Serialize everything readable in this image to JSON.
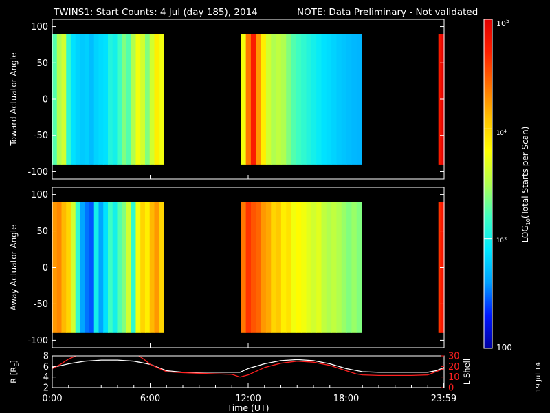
{
  "header": {
    "title": "TWINS1: Start Counts:  4 Jul (day 185), 2014",
    "note": "NOTE: Data Preliminary - Not validated",
    "note_color": "#ff2020"
  },
  "side_stamp": "19 Jul 14",
  "chart_data": [
    {
      "type": "heatmap",
      "panel": "toward",
      "ylabel": "Toward Actuator Angle",
      "ylim": [
        -110,
        110
      ],
      "yticks": [
        "100",
        "50",
        "0",
        "-50",
        "-100"
      ],
      "ytick_values": [
        100,
        50,
        0,
        -50,
        -100
      ],
      "data_y_range": [
        -90,
        90
      ],
      "xlim_hours": [
        0,
        24
      ],
      "segments": [
        {
          "start_hour": 0.0,
          "end_hour": 6.82,
          "profile": [
            10.0,
            12.0,
            13.0,
            9.0,
            7.0,
            6.5,
            6.2,
            6.4,
            5.8,
            6.5,
            6.8,
            7.0,
            8.5,
            8.0,
            9.5,
            11.0,
            10.0,
            12.0,
            14.0,
            13.0,
            11.0,
            13.0,
            15.0,
            14.0
          ]
        },
        {
          "start_hour": 11.55,
          "end_hour": 18.95,
          "profile": [
            14.0,
            19.0,
            22.0,
            18.0,
            15.0,
            13.0,
            12.0,
            12.5,
            12.0,
            11.0,
            10.0,
            9.5,
            9.0,
            8.5,
            8.0,
            7.5,
            7.0,
            6.8,
            6.5,
            6.2,
            6.0,
            5.8,
            5.6,
            5.5
          ]
        },
        {
          "start_hour": 23.65,
          "end_hour": 24.0,
          "profile": [
            22.0,
            23.0,
            24.0
          ]
        }
      ]
    },
    {
      "type": "heatmap",
      "panel": "away",
      "ylabel": "Away Actuator Angle",
      "ylim": [
        -110,
        110
      ],
      "yticks": [
        "100",
        "50",
        "0",
        "-50",
        "-100"
      ],
      "ytick_values": [
        100,
        50,
        0,
        -50,
        -100
      ],
      "data_y_range": [
        -90,
        90
      ],
      "xlim_hours": [
        0,
        24
      ],
      "segments": [
        {
          "start_hour": 0.0,
          "end_hour": 6.82,
          "profile": [
            18.0,
            18.5,
            17.0,
            16.0,
            13.0,
            9.0,
            5.0,
            4.0,
            3.5,
            8.0,
            5.0,
            7.0,
            9.5,
            8.0,
            10.0,
            11.0,
            13.0,
            9.0,
            14.0,
            16.0,
            15.0,
            17.0,
            18.0,
            16.0
          ]
        },
        {
          "start_hour": 11.55,
          "end_hour": 18.95,
          "profile": [
            19.0,
            21.0,
            20.0,
            19.5,
            18.0,
            17.5,
            16.0,
            16.5,
            15.0,
            15.5,
            14.0,
            14.5,
            14.0,
            13.5,
            13.0,
            13.5,
            12.5,
            12.0,
            12.5,
            12.0,
            11.5,
            11.0,
            11.5,
            11.0
          ]
        },
        {
          "start_hour": 23.65,
          "end_hour": 24.0,
          "profile": [
            21.0,
            22.0,
            22.5
          ]
        }
      ]
    },
    {
      "type": "line",
      "panel": "orbit",
      "ylabel_left": "R [R",
      "ylabel_left_sub": "E",
      "ylabel_left_end": "]",
      "ylabel_right": "L Shell",
      "ylim_left": [
        2,
        8
      ],
      "yticks_left": [
        "8",
        "6",
        "4",
        "2"
      ],
      "ytick_values_left": [
        8,
        6,
        4,
        2
      ],
      "ylim_right": [
        0,
        30
      ],
      "yticks_right": [
        "30",
        "20",
        "10",
        "0"
      ],
      "ytick_values_right": [
        30,
        20,
        10,
        0
      ],
      "xlabel": "Time (UT)",
      "xtick_labels": [
        "0:00",
        "6:00",
        "12:00",
        "18:00",
        "23:59"
      ],
      "xtick_hours": [
        0,
        6,
        12,
        18,
        23.98
      ],
      "series": [
        {
          "axis": "left",
          "color": "#ffffff",
          "x_hours": [
            0.0,
            1.0,
            2.0,
            3.0,
            4.0,
            5.0,
            6.0,
            7.0,
            8.0,
            9.0,
            10.0,
            11.0,
            11.5,
            12.0,
            13.0,
            14.0,
            15.0,
            16.0,
            17.0,
            18.0,
            19.0,
            20.0,
            21.0,
            22.0,
            23.0,
            23.5,
            24.0
          ],
          "values": [
            5.8,
            6.5,
            7.0,
            7.2,
            7.2,
            7.0,
            6.4,
            5.2,
            4.9,
            4.9,
            4.9,
            4.9,
            4.9,
            5.6,
            6.5,
            7.1,
            7.3,
            7.1,
            6.5,
            5.6,
            5.0,
            4.9,
            4.9,
            4.9,
            4.9,
            5.2,
            5.8
          ]
        },
        {
          "axis": "right",
          "color": "#ff2020",
          "x_hours": [
            0.0,
            0.5,
            1.0,
            1.6,
            5.2,
            5.6,
            6.0,
            7.0,
            8.0,
            9.0,
            10.0,
            11.0,
            11.5,
            12.0,
            13.0,
            14.0,
            15.0,
            16.0,
            17.0,
            18.0,
            18.6,
            19.0,
            20.0,
            21.0,
            22.0,
            23.0,
            23.5,
            24.0
          ],
          "values": [
            18.0,
            22.0,
            27.0,
            31.0,
            31.0,
            27.0,
            22.0,
            15.0,
            14.0,
            13.5,
            13.0,
            12.5,
            10.0,
            12.0,
            19.0,
            23.0,
            25.0,
            24.0,
            21.0,
            16.0,
            13.0,
            12.0,
            11.5,
            11.5,
            11.5,
            12.0,
            15.0,
            18.0
          ]
        }
      ]
    },
    {
      "type": "colorbar",
      "label": "LOG",
      "label_sub": "10",
      "label_end": "(Total Starts per Scan)",
      "scale": "log",
      "range": [
        100,
        100000
      ],
      "tick_labels": [
        "10",
        "5",
        "10",
        "4",
        "10",
        "3",
        "100"
      ],
      "tick_values": [
        100000,
        10000,
        1000,
        100
      ],
      "colors": [
        "#0000a0",
        "#0018ff",
        "#00a0ff",
        "#00e8ff",
        "#40ffc0",
        "#b0ff50",
        "#ffff00",
        "#ffc000",
        "#ff7000",
        "#ff2000",
        "#e00000"
      ]
    }
  ]
}
